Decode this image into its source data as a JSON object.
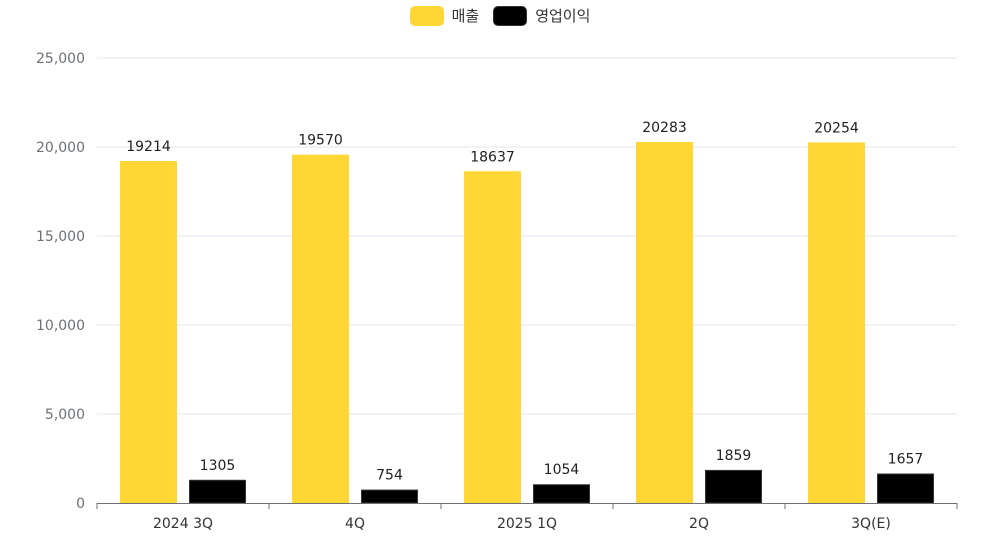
{
  "legend": [
    {
      "label": "매출",
      "color": "#FFD633"
    },
    {
      "label": "영업이익",
      "color": "#000000"
    }
  ],
  "chart_data": {
    "type": "bar",
    "title": "",
    "xlabel": "",
    "ylabel": "",
    "categories": [
      "2024 3Q",
      "4Q",
      "2025 1Q",
      "2Q",
      "3Q(E)"
    ],
    "series": [
      {
        "name": "매출",
        "color": "#FFD633",
        "values": [
          19214,
          19570,
          18637,
          20283,
          20254
        ]
      },
      {
        "name": "영업이익",
        "color": "#000000",
        "values": [
          1305,
          754,
          1054,
          1859,
          1657
        ]
      }
    ],
    "ylim": [
      0,
      25000
    ],
    "yticks": [
      0,
      5000,
      10000,
      15000,
      20000,
      25000
    ],
    "ytick_labels": [
      "0",
      "5,000",
      "10,000",
      "15,000",
      "20,000",
      "25,000"
    ],
    "grid": true,
    "legend_position": "top",
    "data_labels": true
  }
}
